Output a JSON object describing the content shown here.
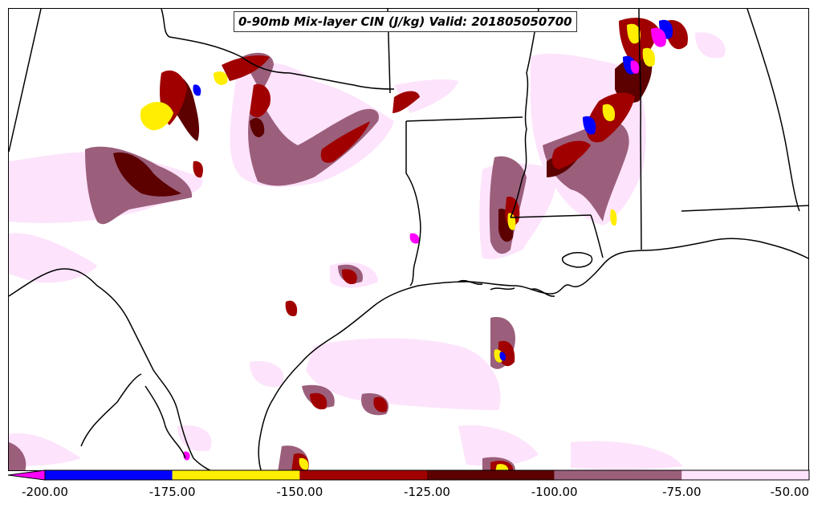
{
  "title": "0-90mb Mix-layer CIN (J/kg) Valid: 201805050700",
  "colors": {
    "boundary": "#000000",
    "background": "#ffffff"
  },
  "colorbar": {
    "min_label": "-200.00",
    "bins": [
      {
        "from": -200,
        "to": -175,
        "color": "#0000ff"
      },
      {
        "from": -175,
        "to": -150,
        "color": "#ffee00"
      },
      {
        "from": -150,
        "to": -125,
        "color": "#a00000"
      },
      {
        "from": -125,
        "to": -100,
        "color": "#5c0000"
      },
      {
        "from": -100,
        "to": -75,
        "color": "#9b5f7b"
      },
      {
        "from": -75,
        "to": -50,
        "color": "#fde3fb"
      }
    ],
    "extend_color": "#ff00ff",
    "tick_labels": [
      "-200.00",
      "-175.00",
      "-150.00",
      "-125.00",
      "-100.00",
      "-75.00",
      "-50.00"
    ]
  }
}
